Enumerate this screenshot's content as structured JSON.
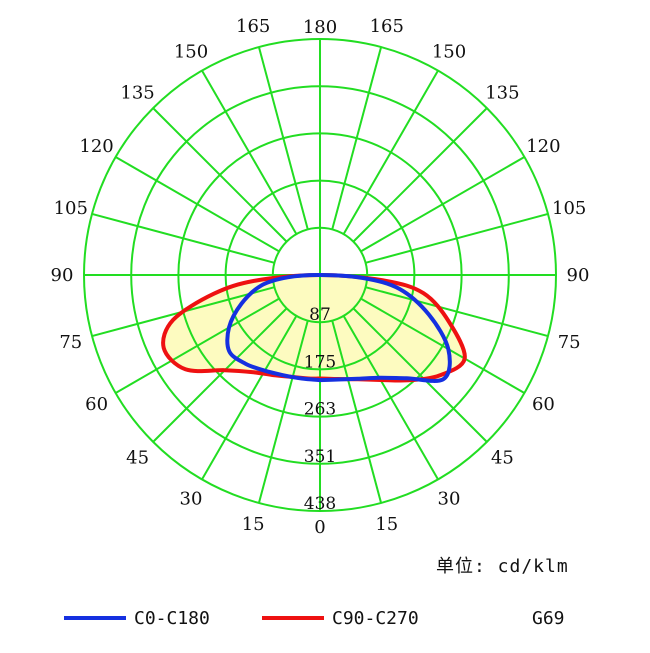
{
  "chart_data": {
    "type": "polar",
    "angle_labels": {
      "left": [
        "0",
        "15",
        "30",
        "45",
        "60",
        "75",
        "90",
        "105",
        "120",
        "135",
        "150",
        "165",
        "180"
      ],
      "right": [
        "0",
        "15",
        "30",
        "45",
        "60",
        "75",
        "90",
        "105",
        "120",
        "135",
        "150",
        "165",
        "180"
      ]
    },
    "ring_labels": [
      "87",
      "175",
      "263",
      "351",
      "438"
    ],
    "rmax": 438,
    "fill_color": "#fdfbc0",
    "grid_color": "#22dd22",
    "unit_label": "单位: cd/klm",
    "lamp_label": "G69",
    "series": [
      {
        "name": "C0-C180",
        "color": "#1530e0",
        "points": [
          [
            0,
            195
          ],
          [
            10,
            197
          ],
          [
            20,
            205
          ],
          [
            30,
            220
          ],
          [
            40,
            250
          ],
          [
            50,
            300
          ],
          [
            60,
            275
          ],
          [
            70,
            215
          ],
          [
            80,
            150
          ],
          [
            86,
            80
          ],
          [
            90,
            0
          ],
          [
            -86,
            60
          ],
          [
            -80,
            110
          ],
          [
            -70,
            155
          ],
          [
            -60,
            195
          ],
          [
            -50,
            220
          ],
          [
            -40,
            215
          ],
          [
            -30,
            205
          ],
          [
            -20,
            198
          ],
          [
            -10,
            195
          ],
          [
            0,
            195
          ]
        ]
      },
      {
        "name": "C90-C270",
        "color": "#ee1111",
        "points": [
          [
            0,
            192
          ],
          [
            10,
            196
          ],
          [
            20,
            206
          ],
          [
            30,
            225
          ],
          [
            40,
            255
          ],
          [
            50,
            290
          ],
          [
            60,
            310
          ],
          [
            70,
            255
          ],
          [
            80,
            195
          ],
          [
            85,
            120
          ],
          [
            90,
            0
          ],
          [
            -85,
            120
          ],
          [
            -80,
            200
          ],
          [
            -73,
            285
          ],
          [
            -65,
            320
          ],
          [
            -55,
            305
          ],
          [
            -45,
            250
          ],
          [
            -35,
            220
          ],
          [
            -25,
            205
          ],
          [
            -15,
            196
          ],
          [
            -5,
            193
          ],
          [
            0,
            192
          ]
        ]
      }
    ]
  }
}
